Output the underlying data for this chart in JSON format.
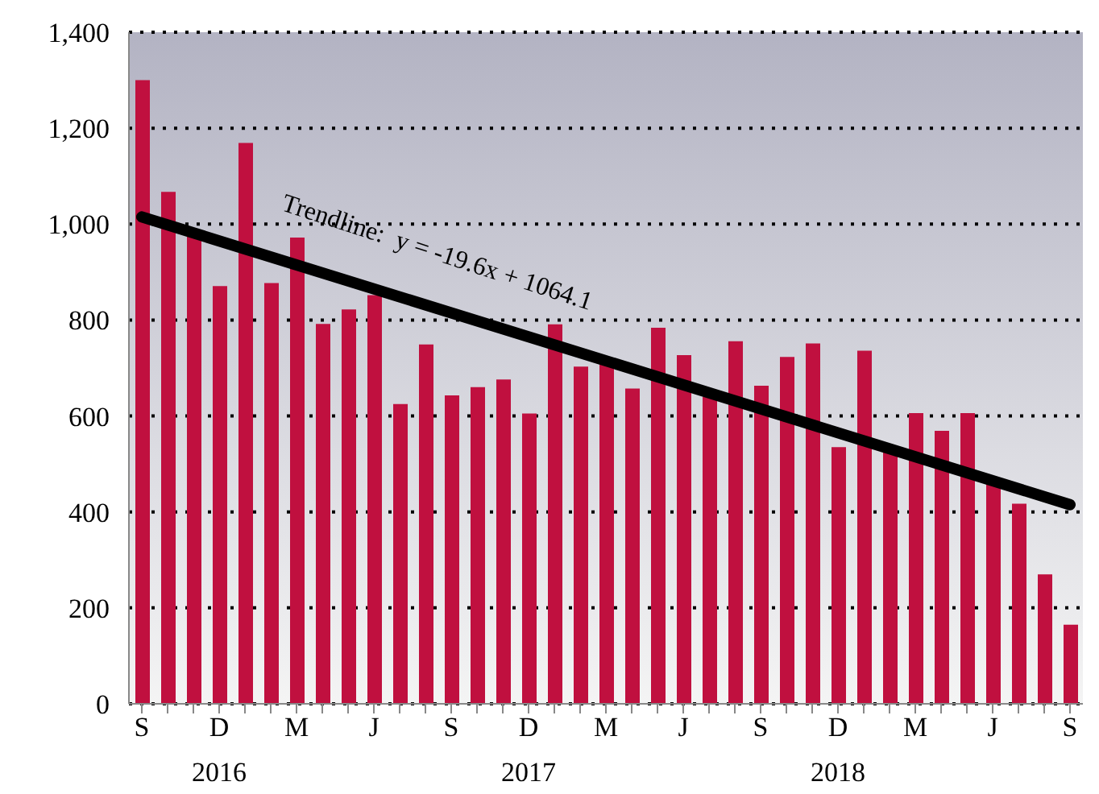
{
  "chart_data": {
    "type": "bar",
    "categories": [
      "S",
      null,
      null,
      "D",
      null,
      null,
      "M",
      null,
      null,
      "J",
      null,
      null,
      "S",
      null,
      null,
      "D",
      null,
      null,
      "M",
      null,
      null,
      "J",
      null,
      null,
      "S",
      null,
      null,
      "D",
      null,
      null,
      "M",
      null,
      null,
      "J",
      null,
      null,
      "S"
    ],
    "series": [
      {
        "color": "#c0103f",
        "values": [
          1300,
          1067,
          975,
          871,
          1169,
          877,
          972,
          792,
          822,
          852,
          625,
          749,
          643,
          660,
          676,
          605,
          791,
          703,
          708,
          657,
          784,
          727,
          640,
          756,
          663,
          723,
          751,
          535,
          736,
          528,
          606,
          569,
          606,
          460,
          417,
          270,
          165
        ]
      },
      {
        "type": "line",
        "color": "#000000",
        "values": [
          1015,
          null,
          null,
          null,
          null,
          null,
          null,
          null,
          null,
          null,
          null,
          null,
          null,
          null,
          null,
          null,
          null,
          null,
          null,
          null,
          null,
          null,
          null,
          null,
          null,
          null,
          null,
          null,
          null,
          null,
          null,
          null,
          null,
          null,
          null,
          null,
          415
        ]
      }
    ],
    "ylim": [
      0,
      1400
    ],
    "yticks": [
      0,
      200,
      400,
      600,
      800,
      {
        "value": 1000,
        "label": "1,000"
      },
      {
        "value": 1200,
        "label": "1,200"
      },
      {
        "value": 1400,
        "label": "1,400"
      }
    ],
    "grid": "y",
    "annotations": [
      "Trendline:  y = -19.6x + 1064.1",
      "2016",
      "2017",
      "2018"
    ]
  }
}
